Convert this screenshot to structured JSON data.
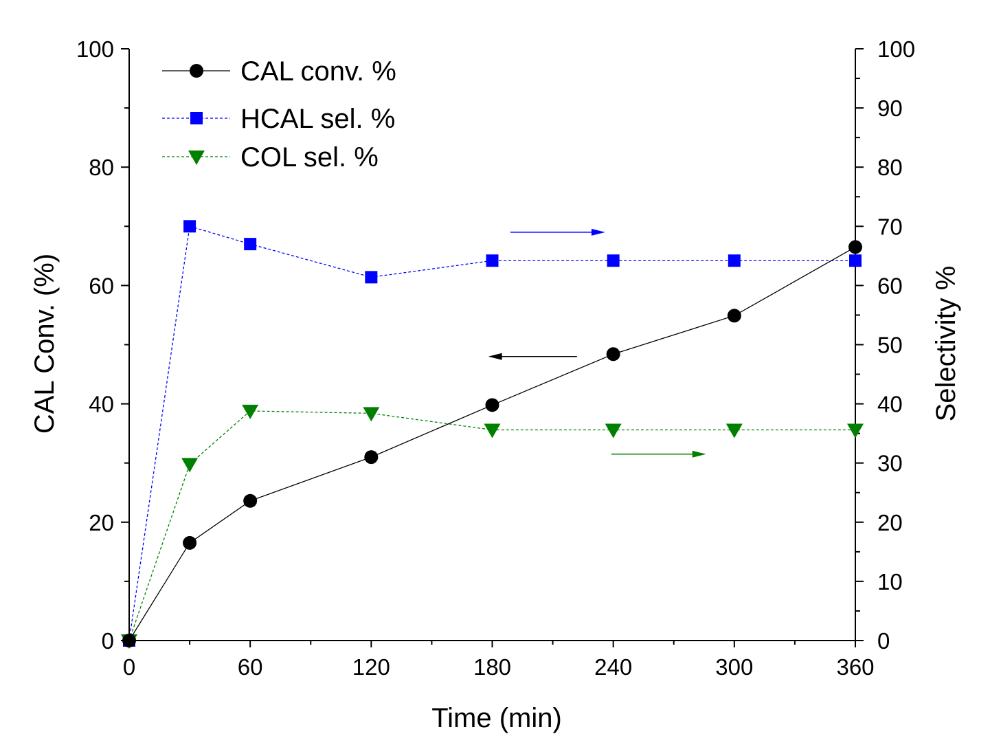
{
  "chart_data": {
    "type": "line",
    "xlabel": "Time (min)",
    "ylabel_left": "CAL Conv. (%)",
    "ylabel_right": "Selectivity %",
    "xlim": [
      0,
      360
    ],
    "ylim_left": [
      0,
      100
    ],
    "ylim_right": [
      0,
      100
    ],
    "x_ticks": [
      "0",
      "60",
      "120",
      "180",
      "240",
      "300",
      "360"
    ],
    "y_left_ticks": [
      "0",
      "20",
      "40",
      "60",
      "80",
      "100"
    ],
    "y_right_ticks": [
      "0",
      "10",
      "20",
      "30",
      "40",
      "50",
      "60",
      "70",
      "80",
      "90",
      "100"
    ],
    "legend_position": "top-left",
    "grid": false,
    "series": [
      {
        "name": "CAL conv. %",
        "axis": "left",
        "color": "#000000",
        "marker": "circle",
        "line": "solid",
        "x": [
          0,
          30,
          60,
          120,
          180,
          240,
          300,
          360
        ],
        "values": [
          0,
          16.5,
          23.6,
          31.0,
          39.8,
          48.4,
          54.9,
          66.5
        ]
      },
      {
        "name": "HCAL sel. %",
        "axis": "right",
        "color": "#0000ff",
        "marker": "square",
        "line": "dashed",
        "x": [
          0,
          30,
          60,
          120,
          180,
          240,
          300,
          360
        ],
        "values": [
          0,
          70.0,
          67.0,
          61.4,
          64.2,
          64.2,
          64.2,
          64.2
        ]
      },
      {
        "name": "COL sel. %",
        "axis": "right",
        "color": "#008000",
        "marker": "triangle-down",
        "line": "dashed",
        "x": [
          0,
          30,
          60,
          120,
          180,
          240,
          300,
          360
        ],
        "values": [
          0,
          29.8,
          38.8,
          38.4,
          35.6,
          35.6,
          35.6,
          35.6
        ]
      }
    ],
    "annotations": [
      {
        "type": "arrow",
        "direction": "right",
        "series": "HCAL sel. %",
        "color": "#0000ff",
        "x_from": 189,
        "x_to": 236,
        "y": 69
      },
      {
        "type": "arrow",
        "direction": "left",
        "series": "CAL conv. %",
        "color": "#000000",
        "x_from": 222,
        "x_to": 178,
        "y": 48
      },
      {
        "type": "arrow",
        "direction": "right",
        "series": "COL sel. %",
        "color": "#008000",
        "x_from": 239,
        "x_to": 286,
        "y": 31.5
      }
    ]
  }
}
